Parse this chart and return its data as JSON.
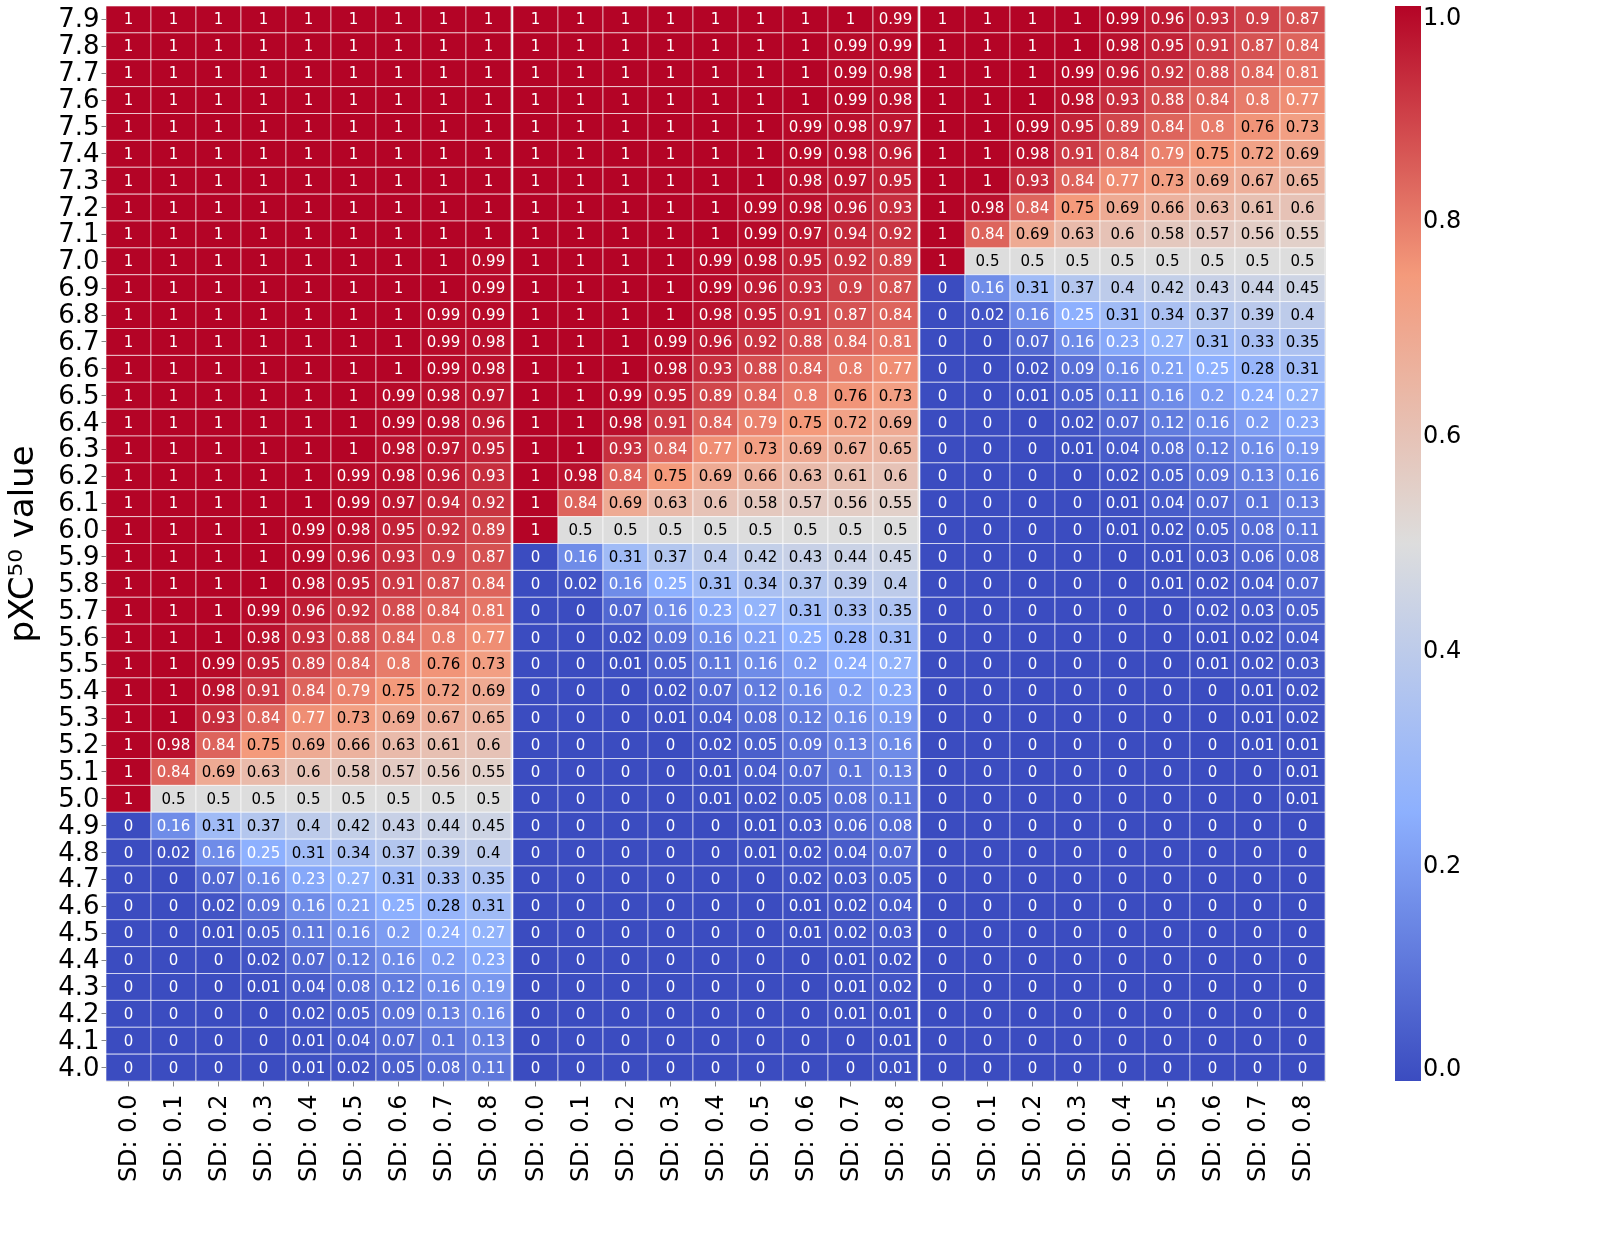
{
  "chart_data": [
    {
      "type": "heatmap",
      "ylabel": "pXC⁵⁰ value",
      "categories": [
        "SD: 0.0",
        "SD: 0.1",
        "SD: 0.2",
        "SD: 0.3",
        "SD: 0.4",
        "SD: 0.5",
        "SD: 0.6",
        "SD: 0.7",
        "SD: 0.8"
      ],
      "y_categories": [
        "7.9",
        "7.8",
        "7.7",
        "7.6",
        "7.5",
        "7.4",
        "7.3",
        "7.2",
        "7.1",
        "7.0",
        "6.9",
        "6.8",
        "6.7",
        "6.6",
        "6.5",
        "6.4",
        "6.3",
        "6.2",
        "6.1",
        "6.0",
        "5.9",
        "5.8",
        "5.7",
        "5.6",
        "5.5",
        "5.4",
        "5.3",
        "5.2",
        "5.1",
        "5.0",
        "4.9",
        "4.8",
        "4.7",
        "4.6",
        "4.5",
        "4.4",
        "4.3",
        "4.2",
        "4.1",
        "4.0"
      ],
      "data_labels": true,
      "cells": [
        [
          1,
          1,
          1,
          1,
          1,
          1,
          1,
          1,
          1
        ],
        [
          1,
          1,
          1,
          1,
          1,
          1,
          1,
          1,
          1
        ],
        [
          1,
          1,
          1,
          1,
          1,
          1,
          1,
          1,
          1
        ],
        [
          1,
          1,
          1,
          1,
          1,
          1,
          1,
          1,
          1
        ],
        [
          1,
          1,
          1,
          1,
          1,
          1,
          1,
          1,
          1
        ],
        [
          1,
          1,
          1,
          1,
          1,
          1,
          1,
          1,
          1
        ],
        [
          1,
          1,
          1,
          1,
          1,
          1,
          1,
          1,
          1
        ],
        [
          1,
          1,
          1,
          1,
          1,
          1,
          1,
          1,
          1
        ],
        [
          1,
          1,
          1,
          1,
          1,
          1,
          1,
          1,
          1
        ],
        [
          1,
          1,
          1,
          1,
          1,
          1,
          1,
          1,
          0.99
        ],
        [
          1,
          1,
          1,
          1,
          1,
          1,
          1,
          1,
          0.99
        ],
        [
          1,
          1,
          1,
          1,
          1,
          1,
          1,
          0.99,
          0.99
        ],
        [
          1,
          1,
          1,
          1,
          1,
          1,
          1,
          0.99,
          0.98
        ],
        [
          1,
          1,
          1,
          1,
          1,
          1,
          1,
          0.99,
          0.98
        ],
        [
          1,
          1,
          1,
          1,
          1,
          1,
          0.99,
          0.98,
          0.97
        ],
        [
          1,
          1,
          1,
          1,
          1,
          1,
          0.99,
          0.98,
          0.96
        ],
        [
          1,
          1,
          1,
          1,
          1,
          1,
          0.98,
          0.97,
          0.95
        ],
        [
          1,
          1,
          1,
          1,
          1,
          0.99,
          0.98,
          0.96,
          0.93
        ],
        [
          1,
          1,
          1,
          1,
          1,
          0.99,
          0.97,
          0.94,
          0.92
        ],
        [
          1,
          1,
          1,
          1,
          0.99,
          0.98,
          0.95,
          0.92,
          0.89
        ],
        [
          1,
          1,
          1,
          1,
          0.99,
          0.96,
          0.93,
          0.9,
          0.87
        ],
        [
          1,
          1,
          1,
          1,
          0.98,
          0.95,
          0.91,
          0.87,
          0.84
        ],
        [
          1,
          1,
          1,
          0.99,
          0.96,
          0.92,
          0.88,
          0.84,
          0.81
        ],
        [
          1,
          1,
          1,
          0.98,
          0.93,
          0.88,
          0.84,
          0.8,
          0.77
        ],
        [
          1,
          1,
          0.99,
          0.95,
          0.89,
          0.84,
          0.8,
          0.76,
          0.73
        ],
        [
          1,
          1,
          0.98,
          0.91,
          0.84,
          0.79,
          0.75,
          0.72,
          0.69
        ],
        [
          1,
          1,
          0.93,
          0.84,
          0.77,
          0.73,
          0.69,
          0.67,
          0.65
        ],
        [
          1,
          0.98,
          0.84,
          0.75,
          0.69,
          0.66,
          0.63,
          0.61,
          0.6
        ],
        [
          1,
          0.84,
          0.69,
          0.63,
          0.6,
          0.58,
          0.57,
          0.56,
          0.55
        ],
        [
          1,
          0.5,
          0.5,
          0.5,
          0.5,
          0.5,
          0.5,
          0.5,
          0.5
        ],
        [
          0,
          0.16,
          0.31,
          0.37,
          0.4,
          0.42,
          0.43,
          0.44,
          0.45
        ],
        [
          0,
          0.02,
          0.16,
          0.25,
          0.31,
          0.34,
          0.37,
          0.39,
          0.4
        ],
        [
          0,
          0,
          0.07,
          0.16,
          0.23,
          0.27,
          0.31,
          0.33,
          0.35
        ],
        [
          0,
          0,
          0.02,
          0.09,
          0.16,
          0.21,
          0.25,
          0.28,
          0.31
        ],
        [
          0,
          0,
          0.01,
          0.05,
          0.11,
          0.16,
          0.2,
          0.24,
          0.27
        ],
        [
          0,
          0,
          0,
          0.02,
          0.07,
          0.12,
          0.16,
          0.2,
          0.23
        ],
        [
          0,
          0,
          0,
          0.01,
          0.04,
          0.08,
          0.12,
          0.16,
          0.19
        ],
        [
          0,
          0,
          0,
          0,
          0.02,
          0.05,
          0.09,
          0.13,
          0.16
        ],
        [
          0,
          0,
          0,
          0,
          0.01,
          0.04,
          0.07,
          0.1,
          0.13
        ],
        [
          0,
          0,
          0,
          0,
          0.01,
          0.02,
          0.05,
          0.08,
          0.11
        ]
      ]
    },
    {
      "type": "heatmap",
      "tick_labels": "x",
      "categories": [
        "SD: 0.0",
        "SD: 0.1",
        "SD: 0.2",
        "SD: 0.3",
        "SD: 0.4",
        "SD: 0.5",
        "SD: 0.6",
        "SD: 0.7",
        "SD: 0.8"
      ],
      "y_categories": [
        "7.9",
        "7.8",
        "7.7",
        "7.6",
        "7.5",
        "7.4",
        "7.3",
        "7.2",
        "7.1",
        "7.0",
        "6.9",
        "6.8",
        "6.7",
        "6.6",
        "6.5",
        "6.4",
        "6.3",
        "6.2",
        "6.1",
        "6.0",
        "5.9",
        "5.8",
        "5.7",
        "5.6",
        "5.5",
        "5.4",
        "5.3",
        "5.2",
        "5.1",
        "5.0",
        "4.9",
        "4.8",
        "4.7",
        "4.6",
        "4.5",
        "4.4",
        "4.3",
        "4.2",
        "4.1",
        "4.0"
      ],
      "data_labels": true,
      "cells": [
        [
          1,
          1,
          1,
          1,
          1,
          1,
          1,
          1,
          0.99
        ],
        [
          1,
          1,
          1,
          1,
          1,
          1,
          1,
          0.99,
          0.99
        ],
        [
          1,
          1,
          1,
          1,
          1,
          1,
          1,
          0.99,
          0.98
        ],
        [
          1,
          1,
          1,
          1,
          1,
          1,
          1,
          0.99,
          0.98
        ],
        [
          1,
          1,
          1,
          1,
          1,
          1,
          0.99,
          0.98,
          0.97
        ],
        [
          1,
          1,
          1,
          1,
          1,
          1,
          0.99,
          0.98,
          0.96
        ],
        [
          1,
          1,
          1,
          1,
          1,
          1,
          0.98,
          0.97,
          0.95
        ],
        [
          1,
          1,
          1,
          1,
          1,
          0.99,
          0.98,
          0.96,
          0.93
        ],
        [
          1,
          1,
          1,
          1,
          1,
          0.99,
          0.97,
          0.94,
          0.92
        ],
        [
          1,
          1,
          1,
          1,
          0.99,
          0.98,
          0.95,
          0.92,
          0.89
        ],
        [
          1,
          1,
          1,
          1,
          0.99,
          0.96,
          0.93,
          0.9,
          0.87
        ],
        [
          1,
          1,
          1,
          1,
          0.98,
          0.95,
          0.91,
          0.87,
          0.84
        ],
        [
          1,
          1,
          1,
          0.99,
          0.96,
          0.92,
          0.88,
          0.84,
          0.81
        ],
        [
          1,
          1,
          1,
          0.98,
          0.93,
          0.88,
          0.84,
          0.8,
          0.77
        ],
        [
          1,
          1,
          0.99,
          0.95,
          0.89,
          0.84,
          0.8,
          0.76,
          0.73
        ],
        [
          1,
          1,
          0.98,
          0.91,
          0.84,
          0.79,
          0.75,
          0.72,
          0.69
        ],
        [
          1,
          1,
          0.93,
          0.84,
          0.77,
          0.73,
          0.69,
          0.67,
          0.65
        ],
        [
          1,
          0.98,
          0.84,
          0.75,
          0.69,
          0.66,
          0.63,
          0.61,
          0.6
        ],
        [
          1,
          0.84,
          0.69,
          0.63,
          0.6,
          0.58,
          0.57,
          0.56,
          0.55
        ],
        [
          1,
          0.5,
          0.5,
          0.5,
          0.5,
          0.5,
          0.5,
          0.5,
          0.5
        ],
        [
          0,
          0.16,
          0.31,
          0.37,
          0.4,
          0.42,
          0.43,
          0.44,
          0.45
        ],
        [
          0,
          0.02,
          0.16,
          0.25,
          0.31,
          0.34,
          0.37,
          0.39,
          0.4
        ],
        [
          0,
          0,
          0.07,
          0.16,
          0.23,
          0.27,
          0.31,
          0.33,
          0.35
        ],
        [
          0,
          0,
          0.02,
          0.09,
          0.16,
          0.21,
          0.25,
          0.28,
          0.31
        ],
        [
          0,
          0,
          0.01,
          0.05,
          0.11,
          0.16,
          0.2,
          0.24,
          0.27
        ],
        [
          0,
          0,
          0,
          0.02,
          0.07,
          0.12,
          0.16,
          0.2,
          0.23
        ],
        [
          0,
          0,
          0,
          0.01,
          0.04,
          0.08,
          0.12,
          0.16,
          0.19
        ],
        [
          0,
          0,
          0,
          0,
          0.02,
          0.05,
          0.09,
          0.13,
          0.16
        ],
        [
          0,
          0,
          0,
          0,
          0.01,
          0.04,
          0.07,
          0.1,
          0.13
        ],
        [
          0,
          0,
          0,
          0,
          0.01,
          0.02,
          0.05,
          0.08,
          0.11
        ],
        [
          0,
          0,
          0,
          0,
          0,
          0.01,
          0.03,
          0.06,
          0.08
        ],
        [
          0,
          0,
          0,
          0,
          0,
          0.01,
          0.02,
          0.04,
          0.07
        ],
        [
          0,
          0,
          0,
          0,
          0,
          0,
          0.02,
          0.03,
          0.05
        ],
        [
          0,
          0,
          0,
          0,
          0,
          0,
          0.01,
          0.02,
          0.04
        ],
        [
          0,
          0,
          0,
          0,
          0,
          0,
          0.01,
          0.02,
          0.03
        ],
        [
          0,
          0,
          0,
          0,
          0,
          0,
          0,
          0.01,
          0.02
        ],
        [
          0,
          0,
          0,
          0,
          0,
          0,
          0,
          0.01,
          0.02
        ],
        [
          0,
          0,
          0,
          0,
          0,
          0,
          0,
          0.01,
          0.01
        ],
        [
          0,
          0,
          0,
          0,
          0,
          0,
          0,
          0,
          0.01
        ],
        [
          0,
          0,
          0,
          0,
          0,
          0,
          0,
          0,
          0.01
        ]
      ]
    },
    {
      "type": "heatmap",
      "tick_labels": "x",
      "categories": [
        "SD: 0.0",
        "SD: 0.1",
        "SD: 0.2",
        "SD: 0.3",
        "SD: 0.4",
        "SD: 0.5",
        "SD: 0.6",
        "SD: 0.7",
        "SD: 0.8"
      ],
      "y_categories": [
        "7.9",
        "7.8",
        "7.7",
        "7.6",
        "7.5",
        "7.4",
        "7.3",
        "7.2",
        "7.1",
        "7.0",
        "6.9",
        "6.8",
        "6.7",
        "6.6",
        "6.5",
        "6.4",
        "6.3",
        "6.2",
        "6.1",
        "6.0",
        "5.9",
        "5.8",
        "5.7",
        "5.6",
        "5.5",
        "5.4",
        "5.3",
        "5.2",
        "5.1",
        "5.0",
        "4.9",
        "4.8",
        "4.7",
        "4.6",
        "4.5",
        "4.4",
        "4.3",
        "4.2",
        "4.1",
        "4.0"
      ],
      "clim": [
        0,
        1
      ],
      "cticks": [
        {
          "value": 0,
          "label": "0.0"
        },
        0.2,
        0.4,
        0.6,
        0.8,
        {
          "value": 1,
          "label": "1.0"
        }
      ],
      "data_labels": true,
      "cells": [
        [
          1,
          1,
          1,
          1,
          0.99,
          0.96,
          0.93,
          0.9,
          0.87
        ],
        [
          1,
          1,
          1,
          1,
          0.98,
          0.95,
          0.91,
          0.87,
          0.84
        ],
        [
          1,
          1,
          1,
          0.99,
          0.96,
          0.92,
          0.88,
          0.84,
          0.81
        ],
        [
          1,
          1,
          1,
          0.98,
          0.93,
          0.88,
          0.84,
          0.8,
          0.77
        ],
        [
          1,
          1,
          0.99,
          0.95,
          0.89,
          0.84,
          0.8,
          0.76,
          0.73
        ],
        [
          1,
          1,
          0.98,
          0.91,
          0.84,
          0.79,
          0.75,
          0.72,
          0.69
        ],
        [
          1,
          1,
          0.93,
          0.84,
          0.77,
          0.73,
          0.69,
          0.67,
          0.65
        ],
        [
          1,
          0.98,
          0.84,
          0.75,
          0.69,
          0.66,
          0.63,
          0.61,
          0.6
        ],
        [
          1,
          0.84,
          0.69,
          0.63,
          0.6,
          0.58,
          0.57,
          0.56,
          0.55
        ],
        [
          1,
          0.5,
          0.5,
          0.5,
          0.5,
          0.5,
          0.5,
          0.5,
          0.5
        ],
        [
          0,
          0.16,
          0.31,
          0.37,
          0.4,
          0.42,
          0.43,
          0.44,
          0.45
        ],
        [
          0,
          0.02,
          0.16,
          0.25,
          0.31,
          0.34,
          0.37,
          0.39,
          0.4
        ],
        [
          0,
          0,
          0.07,
          0.16,
          0.23,
          0.27,
          0.31,
          0.33,
          0.35
        ],
        [
          0,
          0,
          0.02,
          0.09,
          0.16,
          0.21,
          0.25,
          0.28,
          0.31
        ],
        [
          0,
          0,
          0.01,
          0.05,
          0.11,
          0.16,
          0.2,
          0.24,
          0.27
        ],
        [
          0,
          0,
          0,
          0.02,
          0.07,
          0.12,
          0.16,
          0.2,
          0.23
        ],
        [
          0,
          0,
          0,
          0.01,
          0.04,
          0.08,
          0.12,
          0.16,
          0.19
        ],
        [
          0,
          0,
          0,
          0,
          0.02,
          0.05,
          0.09,
          0.13,
          0.16
        ],
        [
          0,
          0,
          0,
          0,
          0.01,
          0.04,
          0.07,
          0.1,
          0.13
        ],
        [
          0,
          0,
          0,
          0,
          0.01,
          0.02,
          0.05,
          0.08,
          0.11
        ],
        [
          0,
          0,
          0,
          0,
          0,
          0.01,
          0.03,
          0.06,
          0.08
        ],
        [
          0,
          0,
          0,
          0,
          0,
          0.01,
          0.02,
          0.04,
          0.07
        ],
        [
          0,
          0,
          0,
          0,
          0,
          0,
          0.02,
          0.03,
          0.05
        ],
        [
          0,
          0,
          0,
          0,
          0,
          0,
          0.01,
          0.02,
          0.04
        ],
        [
          0,
          0,
          0,
          0,
          0,
          0,
          0.01,
          0.02,
          0.03
        ],
        [
          0,
          0,
          0,
          0,
          0,
          0,
          0,
          0.01,
          0.02
        ],
        [
          0,
          0,
          0,
          0,
          0,
          0,
          0,
          0.01,
          0.02
        ],
        [
          0,
          0,
          0,
          0,
          0,
          0,
          0,
          0.01,
          0.01
        ],
        [
          0,
          0,
          0,
          0,
          0,
          0,
          0,
          0,
          0.01
        ],
        [
          0,
          0,
          0,
          0,
          0,
          0,
          0,
          0,
          0.01
        ],
        [
          0,
          0,
          0,
          0,
          0,
          0,
          0,
          0,
          0
        ],
        [
          0,
          0,
          0,
          0,
          0,
          0,
          0,
          0,
          0
        ],
        [
          0,
          0,
          0,
          0,
          0,
          0,
          0,
          0,
          0
        ],
        [
          0,
          0,
          0,
          0,
          0,
          0,
          0,
          0,
          0
        ],
        [
          0,
          0,
          0,
          0,
          0,
          0,
          0,
          0,
          0
        ],
        [
          0,
          0,
          0,
          0,
          0,
          0,
          0,
          0,
          0
        ],
        [
          0,
          0,
          0,
          0,
          0,
          0,
          0,
          0,
          0
        ],
        [
          0,
          0,
          0,
          0,
          0,
          0,
          0,
          0,
          0
        ],
        [
          0,
          0,
          0,
          0,
          0,
          0,
          0,
          0,
          0
        ],
        [
          0,
          0,
          0,
          0,
          0,
          0,
          0,
          0,
          0
        ]
      ]
    }
  ]
}
